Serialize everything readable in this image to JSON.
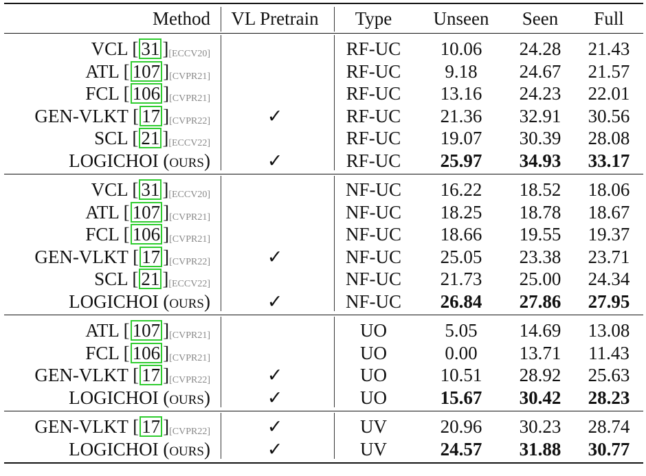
{
  "header": [
    "Method",
    "VL Pretrain",
    "Type",
    "Unseen",
    "Seen",
    "Full"
  ],
  "check_mark": "✓",
  "groups": [
    {
      "rows": [
        {
          "name": "VCL",
          "cite": "31",
          "venue": "[ECCV20]",
          "vl": false,
          "type": "RF-UC",
          "unseen": "10.06",
          "seen": "24.28",
          "full": "21.43"
        },
        {
          "name": "ATL",
          "cite": "107",
          "venue": "[CVPR21]",
          "vl": false,
          "type": "RF-UC",
          "unseen": "9.18",
          "seen": "24.67",
          "full": "21.57"
        },
        {
          "name": "FCL",
          "cite": "106",
          "venue": "[CVPR21]",
          "vl": false,
          "type": "RF-UC",
          "unseen": "13.16",
          "seen": "24.23",
          "full": "22.01"
        },
        {
          "name": "GEN-VLKT",
          "cite": "17",
          "venue": "[CVPR22]",
          "vl": true,
          "type": "RF-UC",
          "unseen": "21.36",
          "seen": "32.91",
          "full": "30.56"
        },
        {
          "name": "SCL",
          "cite": "21",
          "venue": "[ECCV22]",
          "vl": false,
          "type": "RF-UC",
          "unseen": "19.07",
          "seen": "30.39",
          "full": "28.08"
        },
        {
          "name": "LOGICHOI (ours)",
          "ours": true,
          "vl": true,
          "type": "RF-UC",
          "unseen": "25.97",
          "seen": "34.93",
          "full": "33.17"
        }
      ]
    },
    {
      "rows": [
        {
          "name": "VCL",
          "cite": "31",
          "venue": "[ECCV20]",
          "vl": false,
          "type": "NF-UC",
          "unseen": "16.22",
          "seen": "18.52",
          "full": "18.06"
        },
        {
          "name": "ATL",
          "cite": "107",
          "venue": "[CVPR21]",
          "vl": false,
          "type": "NF-UC",
          "unseen": "18.25",
          "seen": "18.78",
          "full": "18.67"
        },
        {
          "name": "FCL",
          "cite": "106",
          "venue": "[CVPR21]",
          "vl": false,
          "type": "NF-UC",
          "unseen": "18.66",
          "seen": "19.55",
          "full": "19.37"
        },
        {
          "name": "GEN-VLKT",
          "cite": "17",
          "venue": "[CVPR22]",
          "vl": true,
          "type": "NF-UC",
          "unseen": "25.05",
          "seen": "23.38",
          "full": "23.71"
        },
        {
          "name": "SCL",
          "cite": "21",
          "venue": "[ECCV22]",
          "vl": false,
          "type": "NF-UC",
          "unseen": "21.73",
          "seen": "25.00",
          "full": "24.34"
        },
        {
          "name": "LOGICHOI (ours)",
          "ours": true,
          "vl": true,
          "type": "NF-UC",
          "unseen": "26.84",
          "seen": "27.86",
          "full": "27.95"
        }
      ]
    },
    {
      "rows": [
        {
          "name": "ATL",
          "cite": "107",
          "venue": "[CVPR21]",
          "vl": false,
          "type": "UO",
          "unseen": "5.05",
          "seen": "14.69",
          "full": "13.08"
        },
        {
          "name": "FCL",
          "cite": "106",
          "venue": "[CVPR21]",
          "vl": false,
          "type": "UO",
          "unseen": "0.00",
          "seen": "13.71",
          "full": "11.43"
        },
        {
          "name": "GEN-VLKT",
          "cite": "17",
          "venue": "[CVPR22]",
          "vl": true,
          "type": "UO",
          "unseen": "10.51",
          "seen": "28.92",
          "full": "25.63"
        },
        {
          "name": "LOGICHOI (ours)",
          "ours": true,
          "vl": true,
          "type": "UO",
          "unseen": "15.67",
          "seen": "30.42",
          "full": "28.23"
        }
      ]
    },
    {
      "rows": [
        {
          "name": "GEN-VLKT",
          "cite": "17",
          "venue": "[CVPR22]",
          "vl": true,
          "type": "UV",
          "unseen": "20.96",
          "seen": "30.23",
          "full": "28.74"
        },
        {
          "name": "LOGICHOI (ours)",
          "ours": true,
          "vl": true,
          "type": "UV",
          "unseen": "24.57",
          "seen": "31.88",
          "full": "30.77"
        }
      ]
    }
  ]
}
